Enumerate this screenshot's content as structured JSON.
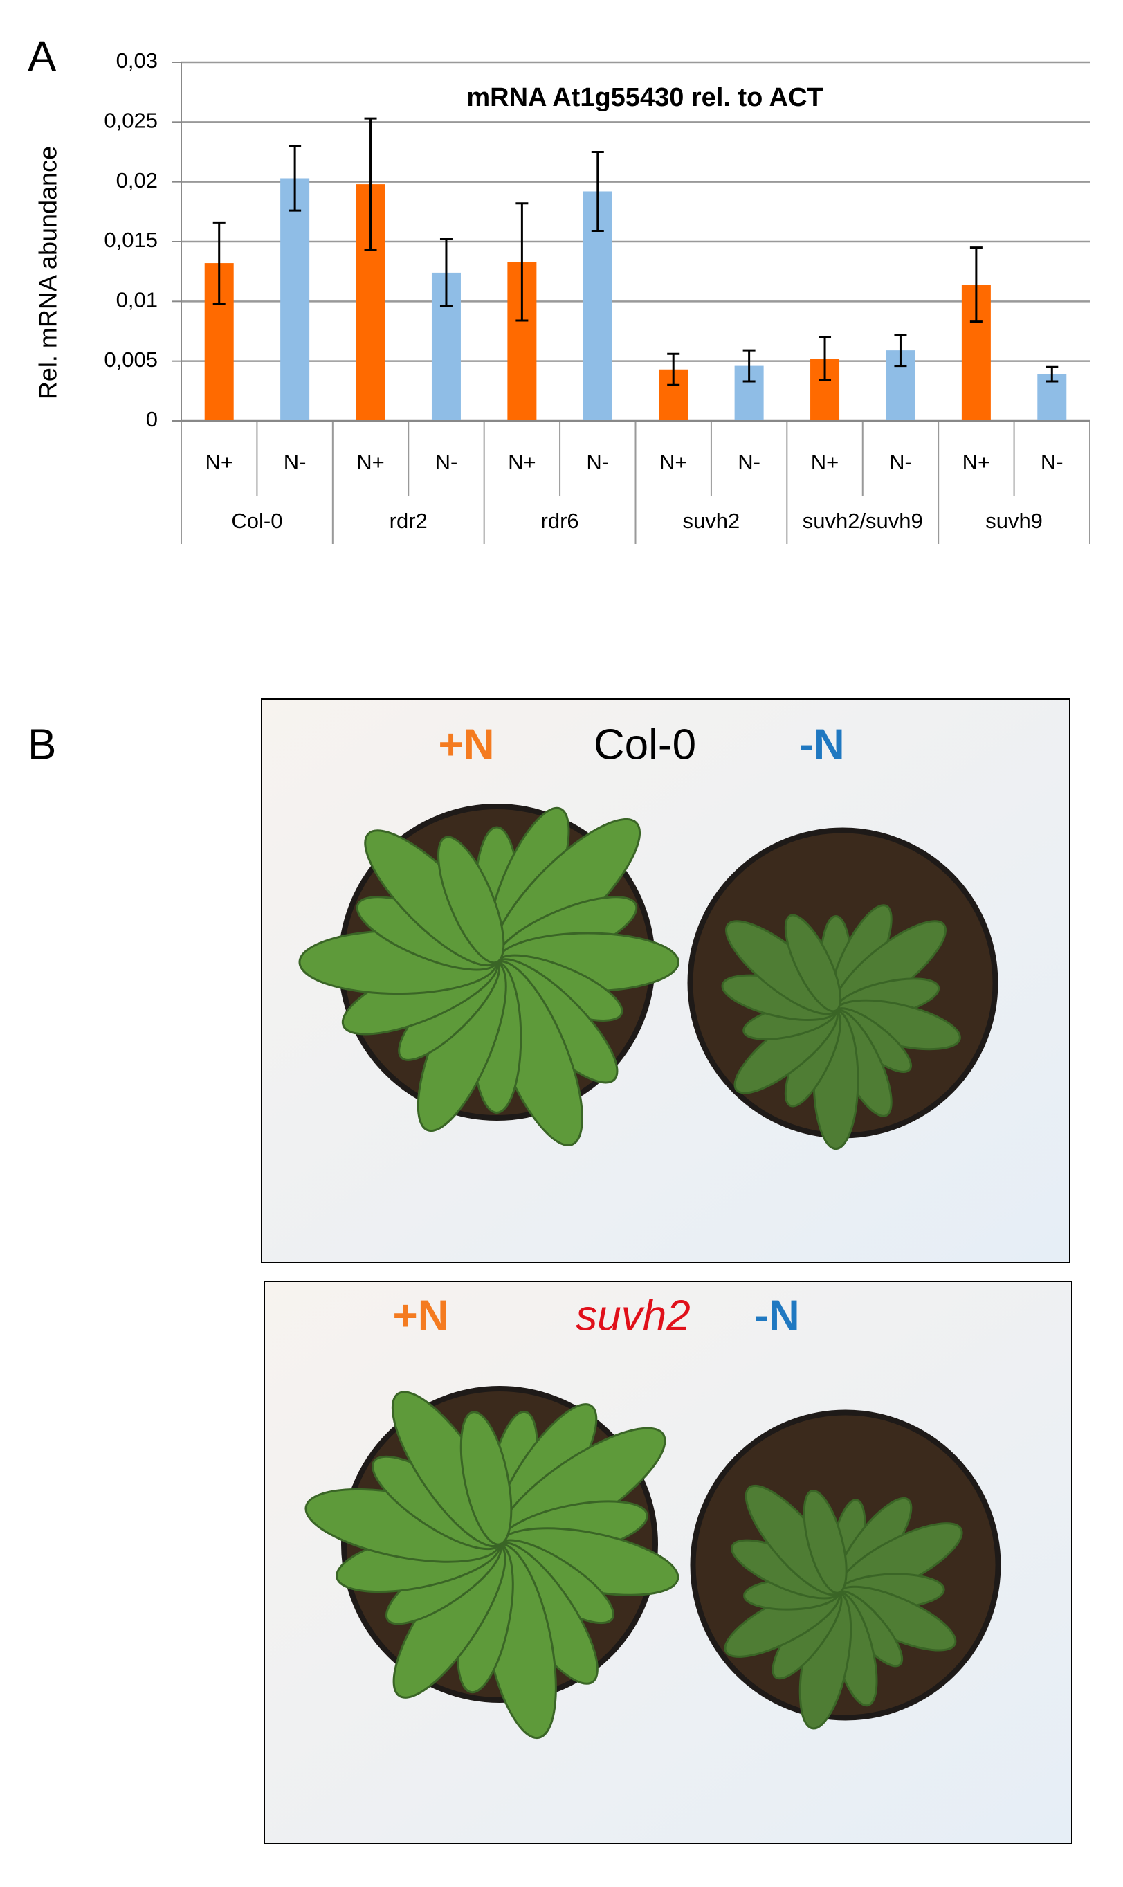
{
  "chart_data": {
    "type": "bar",
    "panel_label": "A",
    "title": "mRNA At1g55430 rel. to ACT",
    "y_label": "Rel. mRNA abundance",
    "categories": [
      "N+",
      "N-",
      "N+",
      "N-",
      "N+",
      "N-",
      "N+",
      "N-",
      "N+",
      "N-",
      "N+",
      "N-"
    ],
    "groups": [
      "Col-0",
      "rdr2",
      "rdr6",
      "suvh2",
      "suvh2/suvh9",
      "suvh9"
    ],
    "values": [
      0.0132,
      0.0203,
      0.0198,
      0.0124,
      0.0133,
      0.0192,
      0.0043,
      0.0046,
      0.0052,
      0.0059,
      0.0114,
      0.0039
    ],
    "errors": [
      0.0034,
      0.0027,
      0.0055,
      0.0028,
      0.0049,
      0.0033,
      0.0013,
      0.0013,
      0.0018,
      0.0013,
      0.0031,
      0.0006
    ],
    "colors": [
      "#ff6a00",
      "#8fbde6",
      "#ff6a00",
      "#8fbde6",
      "#ff6a00",
      "#8fbde6",
      "#ff6a00",
      "#8fbde6",
      "#ff6a00",
      "#8fbde6",
      "#ff6a00",
      "#8fbde6"
    ],
    "ylim": [
      0,
      0.03
    ],
    "yticks": [
      0,
      {
        "value": 0.005,
        "label": "0,005"
      },
      {
        "value": 0.01,
        "label": "0,01"
      },
      {
        "value": 0.015,
        "label": "0,015"
      },
      {
        "value": 0.02,
        "label": "0,02"
      },
      {
        "value": 0.025,
        "label": "0,025"
      },
      {
        "value": 0.03,
        "label": "0,03"
      }
    ],
    "grid": true
  },
  "panel_b": {
    "label": "B",
    "photos": [
      {
        "left": "+N",
        "title": "Col-0",
        "right": "-N"
      },
      {
        "left": "+N",
        "title": "suvh2",
        "right": "-N"
      }
    ]
  }
}
